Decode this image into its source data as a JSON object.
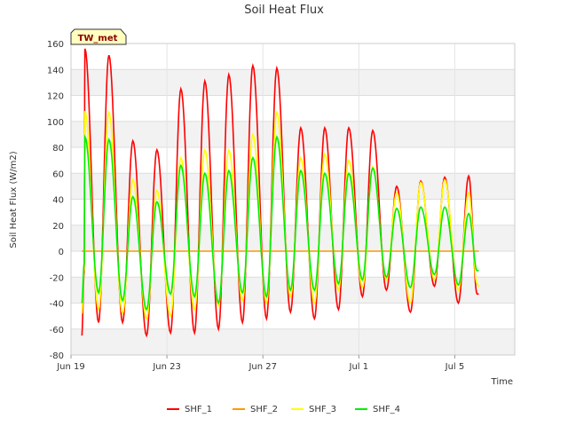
{
  "chart_data": {
    "type": "line",
    "title": "Soil Heat Flux",
    "xlabel": "Time",
    "ylabel": "Soil Heat Flux (W/m2)",
    "badge": "TW_met",
    "ylim": [
      -80,
      160
    ],
    "yticks": [
      -80,
      -60,
      -40,
      -20,
      0,
      20,
      40,
      60,
      80,
      100,
      120,
      140,
      160
    ],
    "xlim_days": [
      0,
      18.5
    ],
    "xticks": [
      {
        "day": 0,
        "label": "Jun 19"
      },
      {
        "day": 4,
        "label": "Jun 23"
      },
      {
        "day": 8,
        "label": "Jun 27"
      },
      {
        "day": 12,
        "label": "Jul 1"
      },
      {
        "day": 16,
        "label": "Jul 5"
      }
    ],
    "grid": true,
    "legend_position": "bottom",
    "series": [
      {
        "name": "SHF_1",
        "color": "#ff0000",
        "daily_max": [
          156,
          151,
          85,
          78,
          125,
          131,
          136,
          143,
          141,
          95,
          95,
          95,
          93,
          50,
          54,
          57,
          58
        ],
        "daily_min": [
          -55,
          -55,
          -65,
          -63,
          -63,
          -60,
          -55,
          -52,
          -47,
          -52,
          -45,
          -35,
          -30,
          -47,
          -27,
          -40,
          -33
        ],
        "start": -65,
        "end": -33
      },
      {
        "name": "SHF_2",
        "color": "#ff9900",
        "daily_max": [
          0,
          0,
          0,
          0,
          0,
          0,
          0,
          0,
          0,
          0,
          0,
          0,
          0,
          0,
          0,
          0,
          0
        ],
        "daily_min": [
          0,
          0,
          0,
          0,
          0,
          0,
          0,
          0,
          0,
          0,
          0,
          0,
          0,
          0,
          0,
          0,
          0
        ],
        "start": 0,
        "end": 0
      },
      {
        "name": "SHF_3",
        "color": "#ffff00",
        "daily_max": [
          108,
          107,
          55,
          47,
          72,
          78,
          78,
          90,
          107,
          72,
          75,
          70,
          65,
          45,
          53,
          55,
          45
        ],
        "daily_min": [
          -45,
          -48,
          -52,
          -50,
          -45,
          -42,
          -38,
          -40,
          -35,
          -40,
          -30,
          -28,
          -22,
          -40,
          -22,
          -30,
          -25
        ],
        "start": -48,
        "end": -27
      },
      {
        "name": "SHF_4",
        "color": "#00ee00",
        "daily_max": [
          88,
          86,
          42,
          38,
          66,
          60,
          62,
          72,
          88,
          62,
          60,
          60,
          64,
          33,
          34,
          34,
          29
        ],
        "daily_min": [
          -32,
          -38,
          -45,
          -33,
          -35,
          -40,
          -32,
          -35,
          -30,
          -30,
          -25,
          -22,
          -20,
          -28,
          -18,
          -26,
          -15
        ],
        "start": -40,
        "end": -15
      }
    ]
  }
}
